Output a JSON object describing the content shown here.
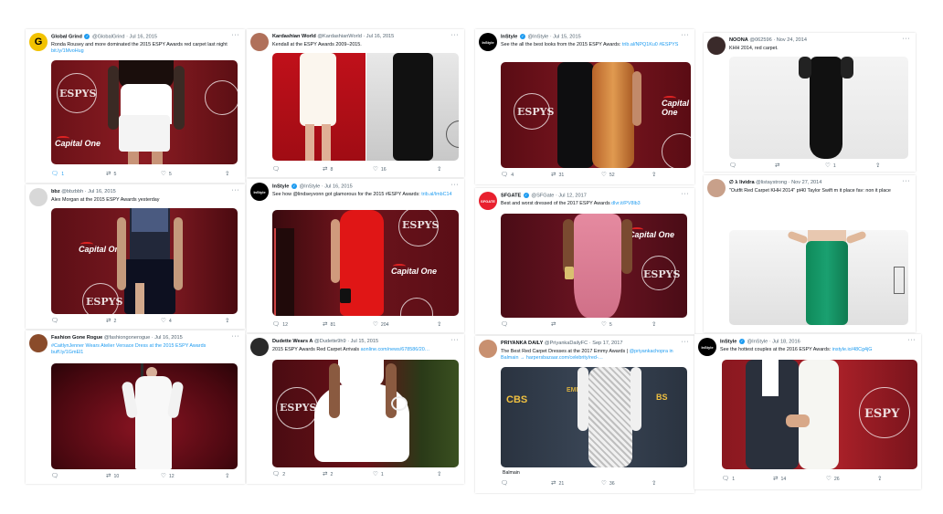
{
  "tweets": [
    {
      "name": "Global Grind",
      "handle": "@GlobalGrind",
      "date": "Jul 16, 2015",
      "verified": true,
      "avatar": "G",
      "text": "Ronda Rousey and more dominated the 2015 ESPY Awards red carpet last night ",
      "link": "bit.ly/1MvoHug",
      "reply": "1",
      "retweet": "5",
      "like": "5",
      "media_logo": "ESPYS",
      "media_brand": "Capital One"
    },
    {
      "name": "Kardashian World",
      "handle": "@KardashianWorld",
      "date": "Jul 16, 2015",
      "verified": false,
      "avatar": "",
      "text": "Kendall at the ESPY Awards 2009–2015.",
      "link": "",
      "reply": "",
      "retweet": "8",
      "like": "16",
      "media_logo": "ESPYS",
      "media_brand": ""
    },
    {
      "name": "InStyle",
      "handle": "@InStyle",
      "date": "Jul 15, 2015",
      "verified": true,
      "avatar": "InStyle",
      "text": "See the all the best looks from the 2015 ESPY Awards: ",
      "link": "trib.al/NPQ1Ku0 #ESPYS",
      "reply": "4",
      "retweet": "31",
      "like": "52",
      "media_logo": "ESPYS",
      "media_brand": "Capital One"
    },
    {
      "name": "NOONA",
      "handle": "@062596",
      "date": "Nov 24, 2014",
      "verified": false,
      "avatar": "",
      "text": "KHH 2014, red carpet.",
      "link": "",
      "reply": "",
      "retweet": "",
      "like": "1",
      "media_logo": "",
      "media_brand": ""
    },
    {
      "name": "bbz",
      "handle": "@bbzbbh",
      "date": "Jul 16, 2015",
      "verified": false,
      "avatar": "",
      "text": "Alex Morgan at the 2015 ESPY Awards yesterday",
      "link": "",
      "reply": "",
      "retweet": "2",
      "like": "4",
      "media_logo": "ESPYS",
      "media_brand": "Capital One"
    },
    {
      "name": "InStyle",
      "handle": "@InStyle",
      "date": "Jul 16, 2015",
      "verified": true,
      "avatar": "InStyle",
      "text": "See how @lindseyvonn got glamorous for the 2015 #ESPY Awards: ",
      "link": "trib.al/lmbC14",
      "reply": "12",
      "retweet": "81",
      "like": "204",
      "media_logo": "ESPYS",
      "media_brand": "Capital One"
    },
    {
      "name": "SFGATE",
      "handle": "@SFGate",
      "date": "Jul 12, 2017",
      "verified": true,
      "avatar": "SFGATE",
      "text": "Best and worst dressed of the 2017 ESPY Awards ",
      "link": "dlvr.it/PV8lb3",
      "reply": "",
      "retweet": "5",
      "like": "",
      "media_logo": "ESPYS",
      "media_brand": "Capital One"
    },
    {
      "name": "∅ λ lividra",
      "handle": "@listaystrong",
      "date": "Nov 27, 2014",
      "verified": false,
      "avatar": "",
      "text": "\"Outfit Red Carpet KHH 2014\" pt40  Taylor Swift  m it place  fav: non it place",
      "link": "",
      "reply": "",
      "retweet": "",
      "like": "",
      "media_logo": "",
      "media_brand": ""
    },
    {
      "name": "Fashion Gone Rogue",
      "handle": "@fashiongonerogue",
      "date": "Jul 16, 2015",
      "verified": false,
      "avatar": "",
      "text": "",
      "link": "#CaitlynJenner Wears Atelier Versace Dress at the 2015 ESPY Awards buff.ly/1GmEl1",
      "reply": "",
      "retweet": "10",
      "like": "12",
      "media_logo": "",
      "media_brand": ""
    },
    {
      "name": "Dudette Wears A",
      "handle": "@Dudette9h9",
      "date": "Jul 15, 2015",
      "verified": false,
      "avatar": "",
      "text": "2015 ESPY Awards Red Carpet Arrivals ",
      "link": "aonline.com/news/678586/20…",
      "reply": "2",
      "retweet": "2",
      "like": "1",
      "media_logo": "ESPYS",
      "media_brand": ""
    },
    {
      "name": "PRIYANKA DAILY",
      "handle": "@PriyankaDailyFC",
      "date": "Sep 17, 2017",
      "verified": false,
      "avatar": "",
      "text": "The Best Red Carpet Dresses at the 2017 Emmy Awards | ",
      "link": "@priyankachopra in Balmain → harpersbazaar.com/celebrity/red-…",
      "reply": "",
      "retweet": "21",
      "like": "36",
      "media_logo": "CBS",
      "media_brand": "EMMYS"
    },
    {
      "name": "InStyle",
      "handle": "@InStyle",
      "date": "Jul 18, 2016",
      "verified": true,
      "avatar": "InStyle",
      "text": "See the hottest couples at the 2016 ESPY Awards: ",
      "link": "instyle.io/48Cg4jG",
      "reply": "1",
      "retweet": "14",
      "like": "26",
      "media_logo": "ESPY",
      "media_brand": ""
    }
  ],
  "extra_text": {
    "balmain": "Balmain"
  }
}
